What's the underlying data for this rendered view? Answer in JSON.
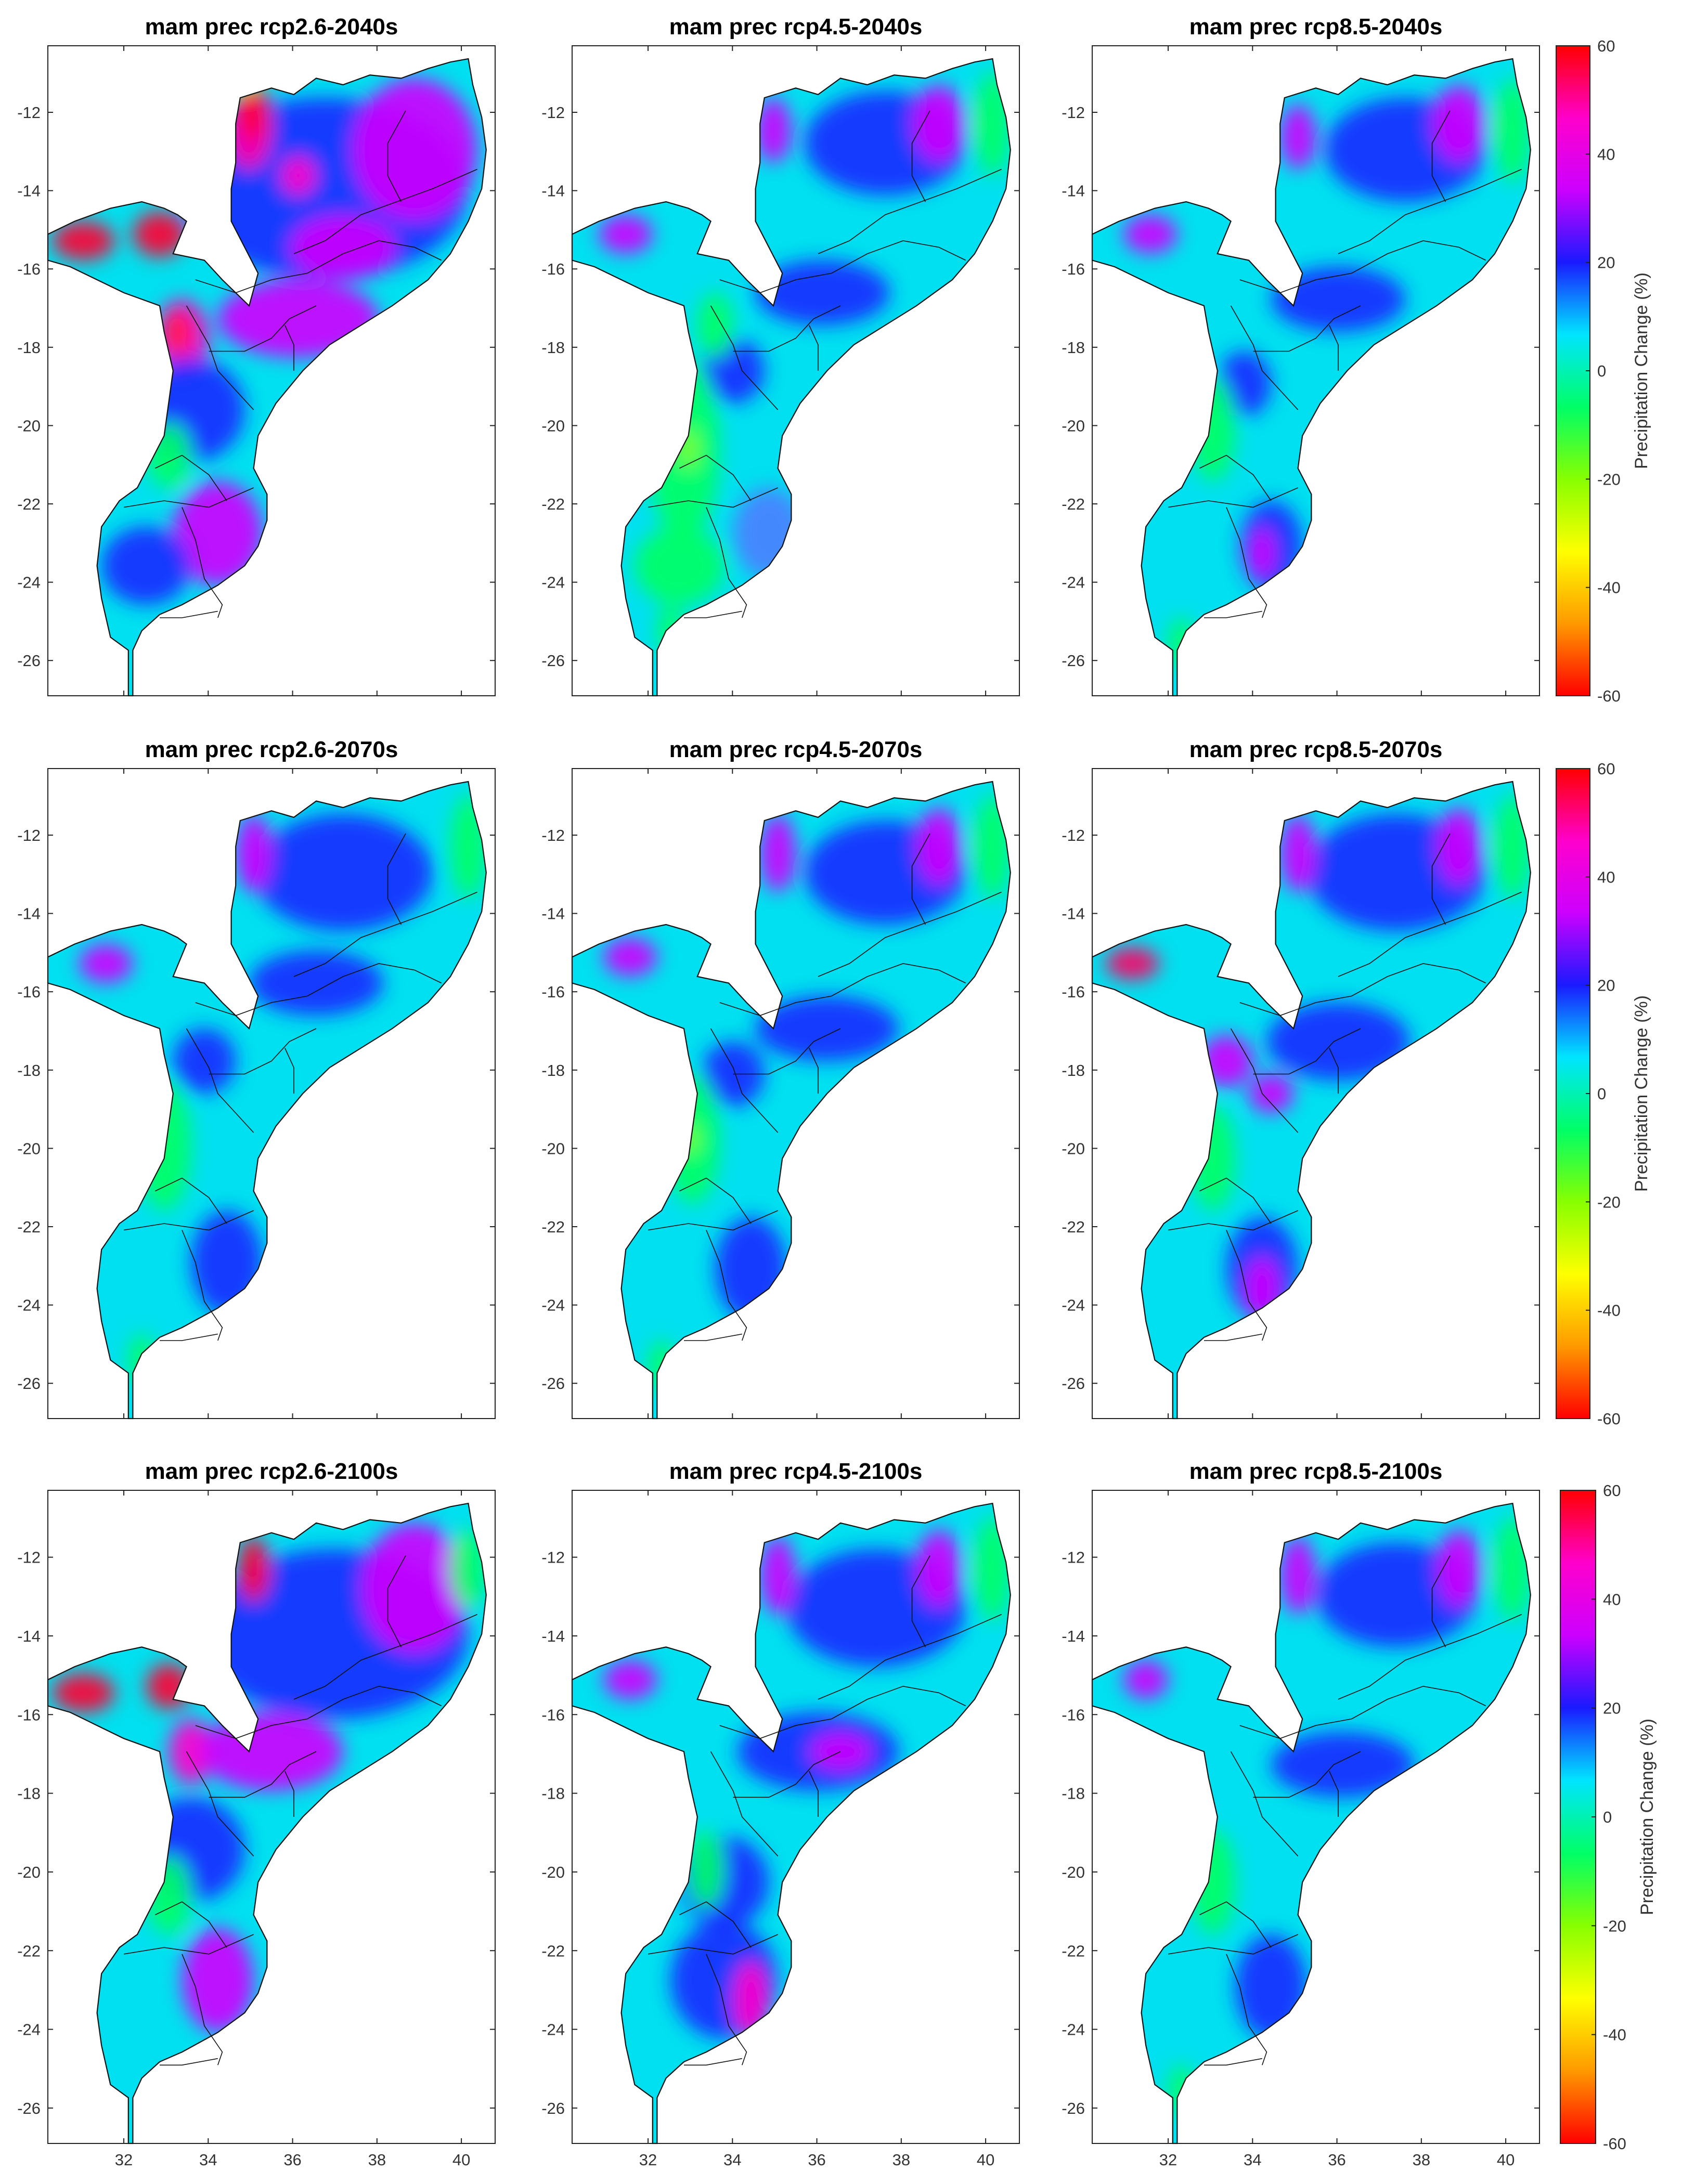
{
  "figure": {
    "colorbar_label": "Precipitation Change (%)",
    "colorbar_ticks": [
      "60",
      "40",
      "20",
      "0",
      "-20",
      "-40",
      "-60"
    ],
    "y_tick_labels": [
      "-12",
      "-14",
      "-16",
      "-18",
      "-20",
      "-22",
      "-24",
      "-26"
    ],
    "x_tick_labels": [
      "32",
      "34",
      "36",
      "38",
      "40"
    ],
    "colorscale": [
      "#ff0000",
      "#ff00cc",
      "#cc00ff",
      "#1a1aff",
      "#00e5ff",
      "#00ff66",
      "#88ff00",
      "#ffff00",
      "#ff9900",
      "#ff0000"
    ],
    "panels": [
      {
        "title": "mam prec rcp2.6-2040s"
      },
      {
        "title": "mam prec rcp4.5-2040s"
      },
      {
        "title": "mam prec rcp8.5-2040s"
      },
      {
        "title": "mam prec rcp2.6-2070s"
      },
      {
        "title": "mam prec rcp4.5-2070s"
      },
      {
        "title": "mam prec rcp8.5-2070s"
      },
      {
        "title": "mam prec rcp2.6-2100s"
      },
      {
        "title": "mam prec rcp4.5-2100s"
      },
      {
        "title": "mam prec rcp8.5-2100s"
      }
    ]
  },
  "chart_data": {
    "type": "heatmap",
    "xlim": [
      30.2,
      40.8
    ],
    "ylim": [
      -26.9,
      -10.3
    ],
    "colorbar_range": [
      -60,
      60
    ]
  }
}
